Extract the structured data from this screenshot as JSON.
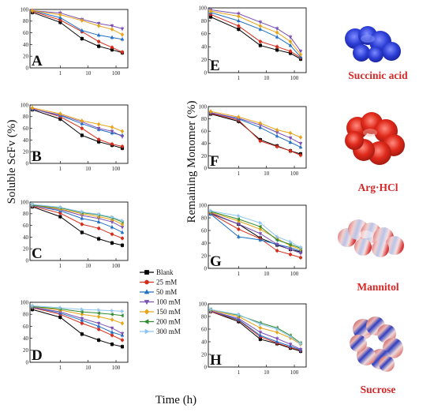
{
  "xlabel": "Time (h)",
  "ylabel_left": "Soluble ScFv (%)",
  "ylabel_right": "Remaining Monomer (%)",
  "legend": [
    {
      "name": "Blank",
      "color": "#000000",
      "marker": "square"
    },
    {
      "name": "25 mM",
      "color": "#d62c1a",
      "marker": "circle"
    },
    {
      "name": "50 mM",
      "color": "#1f6fc4",
      "marker": "triangle-up"
    },
    {
      "name": "100 mM",
      "color": "#7b4fb5",
      "marker": "triangle-down"
    },
    {
      "name": "150 mM",
      "color": "#e8a317",
      "marker": "diamond"
    },
    {
      "name": "200 mM",
      "color": "#2e8b2e",
      "marker": "triangle-left"
    },
    {
      "name": "300 mM",
      "color": "#8fc4f0",
      "marker": "triangle-right"
    }
  ],
  "molecules": [
    {
      "name": "Succinic acid",
      "color": "#2d3fd6",
      "icon": "succinic-acid-surface"
    },
    {
      "name": "Arg·HCl",
      "color": "#d8281e",
      "icon": "arg-hcl-surface"
    },
    {
      "name": "Mannitol",
      "color": "#e05a5a",
      "icon": "mannitol-surface"
    },
    {
      "name": "Sucrose",
      "color": "#c23a3a",
      "icon": "sucrose-surface"
    }
  ],
  "chart_data": [
    {
      "panel": "A",
      "type": "line",
      "x": [
        0.1,
        1,
        6,
        24,
        72,
        168
      ],
      "xscale": "log",
      "ylim": [
        0,
        100
      ],
      "yticks": [
        0,
        20,
        40,
        60,
        80,
        100
      ],
      "xticks": [
        1,
        10,
        100
      ],
      "series": [
        {
          "name": "Blank",
          "values": [
            95,
            78,
            50,
            37,
            31,
            26
          ]
        },
        {
          "name": "25 mM",
          "values": [
            97,
            82,
            62,
            45,
            35,
            27
          ]
        },
        {
          "name": "50 mM",
          "values": [
            98,
            86,
            64,
            56,
            52,
            49
          ]
        },
        {
          "name": "100 mM",
          "values": [
            98,
            94,
            83,
            76,
            72,
            67
          ]
        },
        {
          "name": "150 mM",
          "values": [
            98,
            91,
            81,
            72,
            66,
            57
          ]
        }
      ]
    },
    {
      "panel": "B",
      "type": "line",
      "x": [
        0.1,
        1,
        6,
        24,
        72,
        168
      ],
      "xscale": "log",
      "ylim": [
        0,
        100
      ],
      "yticks": [
        0,
        20,
        40,
        60,
        80,
        100
      ],
      "xticks": [
        1,
        10,
        100
      ],
      "series": [
        {
          "name": "Blank",
          "values": [
            92,
            76,
            48,
            37,
            31,
            26
          ]
        },
        {
          "name": "25 mM",
          "values": [
            94,
            80,
            60,
            41,
            33,
            29
          ]
        },
        {
          "name": "50 mM",
          "values": [
            93,
            82,
            68,
            58,
            52,
            48
          ]
        },
        {
          "name": "100 mM",
          "values": [
            93,
            83,
            71,
            60,
            55,
            46
          ]
        },
        {
          "name": "150 mM",
          "values": [
            95,
            85,
            73,
            67,
            62,
            55
          ]
        }
      ]
    },
    {
      "panel": "C",
      "type": "line",
      "x": [
        0.1,
        1,
        6,
        24,
        72,
        168
      ],
      "xscale": "log",
      "ylim": [
        0,
        100
      ],
      "yticks": [
        0,
        20,
        40,
        60,
        80,
        100
      ],
      "xticks": [
        1,
        10,
        100
      ],
      "series": [
        {
          "name": "Blank",
          "values": [
            92,
            75,
            48,
            37,
            30,
            26
          ]
        },
        {
          "name": "25 mM",
          "values": [
            93,
            81,
            62,
            55,
            45,
            38
          ]
        },
        {
          "name": "50 mM",
          "values": [
            94,
            85,
            72,
            66,
            57,
            48
          ]
        },
        {
          "name": "100 mM",
          "values": [
            94,
            87,
            77,
            72,
            66,
            57
          ]
        },
        {
          "name": "150 mM",
          "values": [
            95,
            88,
            80,
            75,
            70,
            62
          ]
        },
        {
          "name": "200 mM",
          "values": [
            95,
            90,
            82,
            78,
            73,
            66
          ]
        },
        {
          "name": "300 mM",
          "values": [
            96,
            91,
            83,
            79,
            74,
            68
          ]
        }
      ]
    },
    {
      "panel": "D",
      "type": "line",
      "x": [
        0.1,
        1,
        6,
        24,
        72,
        168
      ],
      "xscale": "log",
      "ylim": [
        0,
        100
      ],
      "yticks": [
        0,
        20,
        40,
        60,
        80,
        100
      ],
      "xticks": [
        1,
        10,
        100
      ],
      "series": [
        {
          "name": "Blank",
          "values": [
            88,
            75,
            47,
            37,
            30,
            26
          ]
        },
        {
          "name": "25 mM",
          "values": [
            91,
            80,
            65,
            55,
            45,
            37
          ]
        },
        {
          "name": "50 mM",
          "values": [
            92,
            82,
            70,
            60,
            50,
            45
          ]
        },
        {
          "name": "100 mM",
          "values": [
            92,
            84,
            73,
            65,
            57,
            48
          ]
        },
        {
          "name": "150 mM",
          "values": [
            93,
            87,
            80,
            76,
            71,
            65
          ]
        },
        {
          "name": "200 mM",
          "values": [
            93,
            89,
            84,
            82,
            80,
            78
          ]
        },
        {
          "name": "300 mM",
          "values": [
            94,
            91,
            88,
            87,
            86,
            85
          ]
        }
      ]
    },
    {
      "panel": "E",
      "type": "line",
      "x": [
        0.1,
        1,
        6,
        24,
        72,
        168
      ],
      "xscale": "log",
      "ylim": [
        0,
        100
      ],
      "yticks": [
        0,
        20,
        40,
        60,
        80,
        100
      ],
      "xticks": [
        1,
        10,
        100
      ],
      "series": [
        {
          "name": "Blank",
          "values": [
            86,
            67,
            42,
            35,
            30,
            21
          ]
        },
        {
          "name": "25 mM",
          "values": [
            90,
            72,
            48,
            40,
            33,
            23
          ]
        },
        {
          "name": "50 mM",
          "values": [
            93,
            80,
            67,
            55,
            42,
            24
          ]
        },
        {
          "name": "100 mM",
          "values": [
            97,
            91,
            78,
            68,
            55,
            33
          ]
        },
        {
          "name": "150 mM",
          "values": [
            95,
            87,
            72,
            62,
            48,
            28
          ]
        }
      ]
    },
    {
      "panel": "F",
      "type": "line",
      "x": [
        0.1,
        1,
        6,
        24,
        72,
        168
      ],
      "xscale": "log",
      "ylim": [
        0,
        100
      ],
      "yticks": [
        0,
        20,
        40,
        60,
        80,
        100
      ],
      "xticks": [
        1,
        10,
        100
      ],
      "series": [
        {
          "name": "Blank",
          "values": [
            88,
            76,
            46,
            36,
            28,
            23
          ]
        },
        {
          "name": "25 mM",
          "values": [
            89,
            78,
            44,
            35,
            28,
            21
          ]
        },
        {
          "name": "50 mM",
          "values": [
            90,
            80,
            66,
            52,
            42,
            34
          ]
        },
        {
          "name": "100 mM",
          "values": [
            90,
            81,
            70,
            58,
            49,
            40
          ]
        },
        {
          "name": "150 mM",
          "values": [
            92,
            83,
            73,
            62,
            57,
            50
          ]
        }
      ]
    },
    {
      "panel": "G",
      "type": "line",
      "x": [
        0.1,
        1,
        6,
        24,
        72,
        168
      ],
      "xscale": "log",
      "ylim": [
        0,
        100
      ],
      "yticks": [
        0,
        20,
        40,
        60,
        80,
        100
      ],
      "xticks": [
        1,
        10,
        100
      ],
      "series": [
        {
          "name": "Blank",
          "values": [
            87,
            70,
            48,
            37,
            30,
            26
          ]
        },
        {
          "name": "25 mM",
          "values": [
            87,
            62,
            47,
            28,
            22,
            17
          ]
        },
        {
          "name": "50 mM",
          "values": [
            86,
            50,
            45,
            38,
            33,
            27
          ]
        },
        {
          "name": "100 mM",
          "values": [
            88,
            70,
            55,
            38,
            30,
            24
          ]
        },
        {
          "name": "150 mM",
          "values": [
            89,
            75,
            62,
            47,
            36,
            30
          ]
        },
        {
          "name": "200 mM",
          "values": [
            90,
            78,
            66,
            45,
            38,
            32
          ]
        },
        {
          "name": "300 mM",
          "values": [
            91,
            83,
            72,
            50,
            42,
            33
          ]
        }
      ]
    },
    {
      "panel": "H",
      "type": "line",
      "x": [
        0.1,
        1,
        6,
        24,
        72,
        168
      ],
      "xscale": "log",
      "ylim": [
        0,
        100
      ],
      "yticks": [
        0,
        20,
        40,
        60,
        80,
        100
      ],
      "xticks": [
        1,
        10,
        100
      ],
      "series": [
        {
          "name": "Blank",
          "values": [
            88,
            72,
            44,
            37,
            30,
            25
          ]
        },
        {
          "name": "25 mM",
          "values": [
            88,
            74,
            48,
            38,
            31,
            26
          ]
        },
        {
          "name": "50 mM",
          "values": [
            89,
            75,
            50,
            40,
            33,
            27
          ]
        },
        {
          "name": "100 mM",
          "values": [
            89,
            77,
            55,
            45,
            36,
            28
          ]
        },
        {
          "name": "150 mM",
          "values": [
            90,
            80,
            62,
            55,
            46,
            36
          ]
        },
        {
          "name": "200 mM",
          "values": [
            91,
            82,
            70,
            62,
            50,
            38
          ]
        },
        {
          "name": "300 mM",
          "values": [
            91,
            83,
            68,
            60,
            48,
            37
          ]
        }
      ]
    }
  ]
}
